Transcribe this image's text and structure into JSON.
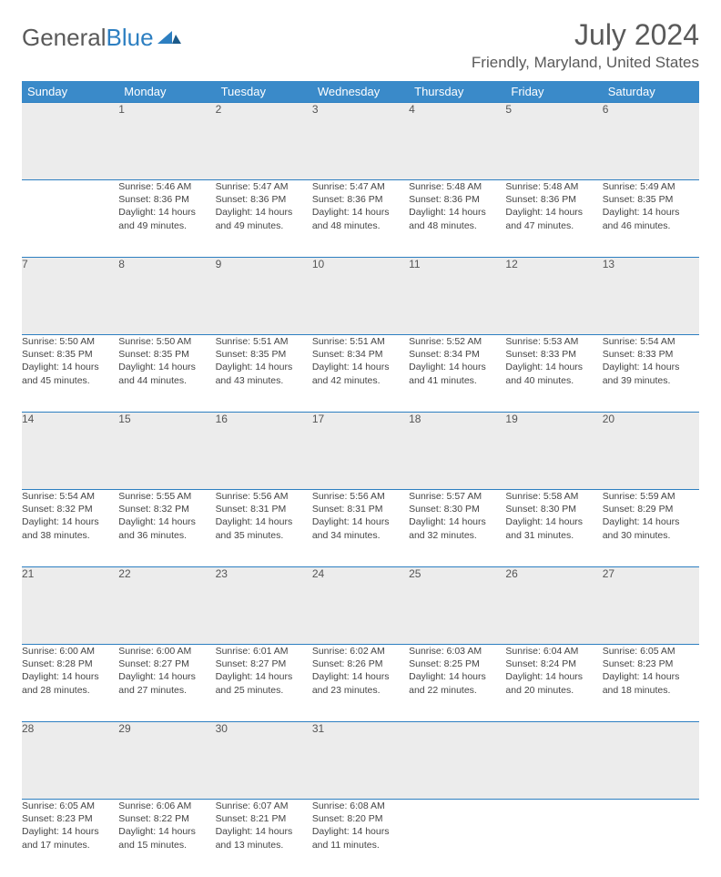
{
  "logo": {
    "text1": "General",
    "text2": "Blue"
  },
  "title": "July 2024",
  "location": "Friendly, Maryland, United States",
  "colors": {
    "header_bg": "#3a8ac9",
    "header_text": "#ffffff",
    "daynum_bg": "#ececec",
    "border": "#2d7fc1",
    "body_text": "#444444",
    "title_text": "#5a5a5a"
  },
  "weekdays": [
    "Sunday",
    "Monday",
    "Tuesday",
    "Wednesday",
    "Thursday",
    "Friday",
    "Saturday"
  ],
  "weeks": [
    [
      {
        "n": "",
        "lines": [
          "",
          "",
          "",
          ""
        ]
      },
      {
        "n": "1",
        "lines": [
          "Sunrise: 5:46 AM",
          "Sunset: 8:36 PM",
          "Daylight: 14 hours",
          "and 49 minutes."
        ]
      },
      {
        "n": "2",
        "lines": [
          "Sunrise: 5:47 AM",
          "Sunset: 8:36 PM",
          "Daylight: 14 hours",
          "and 49 minutes."
        ]
      },
      {
        "n": "3",
        "lines": [
          "Sunrise: 5:47 AM",
          "Sunset: 8:36 PM",
          "Daylight: 14 hours",
          "and 48 minutes."
        ]
      },
      {
        "n": "4",
        "lines": [
          "Sunrise: 5:48 AM",
          "Sunset: 8:36 PM",
          "Daylight: 14 hours",
          "and 48 minutes."
        ]
      },
      {
        "n": "5",
        "lines": [
          "Sunrise: 5:48 AM",
          "Sunset: 8:36 PM",
          "Daylight: 14 hours",
          "and 47 minutes."
        ]
      },
      {
        "n": "6",
        "lines": [
          "Sunrise: 5:49 AM",
          "Sunset: 8:35 PM",
          "Daylight: 14 hours",
          "and 46 minutes."
        ]
      }
    ],
    [
      {
        "n": "7",
        "lines": [
          "Sunrise: 5:50 AM",
          "Sunset: 8:35 PM",
          "Daylight: 14 hours",
          "and 45 minutes."
        ]
      },
      {
        "n": "8",
        "lines": [
          "Sunrise: 5:50 AM",
          "Sunset: 8:35 PM",
          "Daylight: 14 hours",
          "and 44 minutes."
        ]
      },
      {
        "n": "9",
        "lines": [
          "Sunrise: 5:51 AM",
          "Sunset: 8:35 PM",
          "Daylight: 14 hours",
          "and 43 minutes."
        ]
      },
      {
        "n": "10",
        "lines": [
          "Sunrise: 5:51 AM",
          "Sunset: 8:34 PM",
          "Daylight: 14 hours",
          "and 42 minutes."
        ]
      },
      {
        "n": "11",
        "lines": [
          "Sunrise: 5:52 AM",
          "Sunset: 8:34 PM",
          "Daylight: 14 hours",
          "and 41 minutes."
        ]
      },
      {
        "n": "12",
        "lines": [
          "Sunrise: 5:53 AM",
          "Sunset: 8:33 PM",
          "Daylight: 14 hours",
          "and 40 minutes."
        ]
      },
      {
        "n": "13",
        "lines": [
          "Sunrise: 5:54 AM",
          "Sunset: 8:33 PM",
          "Daylight: 14 hours",
          "and 39 minutes."
        ]
      }
    ],
    [
      {
        "n": "14",
        "lines": [
          "Sunrise: 5:54 AM",
          "Sunset: 8:32 PM",
          "Daylight: 14 hours",
          "and 38 minutes."
        ]
      },
      {
        "n": "15",
        "lines": [
          "Sunrise: 5:55 AM",
          "Sunset: 8:32 PM",
          "Daylight: 14 hours",
          "and 36 minutes."
        ]
      },
      {
        "n": "16",
        "lines": [
          "Sunrise: 5:56 AM",
          "Sunset: 8:31 PM",
          "Daylight: 14 hours",
          "and 35 minutes."
        ]
      },
      {
        "n": "17",
        "lines": [
          "Sunrise: 5:56 AM",
          "Sunset: 8:31 PM",
          "Daylight: 14 hours",
          "and 34 minutes."
        ]
      },
      {
        "n": "18",
        "lines": [
          "Sunrise: 5:57 AM",
          "Sunset: 8:30 PM",
          "Daylight: 14 hours",
          "and 32 minutes."
        ]
      },
      {
        "n": "19",
        "lines": [
          "Sunrise: 5:58 AM",
          "Sunset: 8:30 PM",
          "Daylight: 14 hours",
          "and 31 minutes."
        ]
      },
      {
        "n": "20",
        "lines": [
          "Sunrise: 5:59 AM",
          "Sunset: 8:29 PM",
          "Daylight: 14 hours",
          "and 30 minutes."
        ]
      }
    ],
    [
      {
        "n": "21",
        "lines": [
          "Sunrise: 6:00 AM",
          "Sunset: 8:28 PM",
          "Daylight: 14 hours",
          "and 28 minutes."
        ]
      },
      {
        "n": "22",
        "lines": [
          "Sunrise: 6:00 AM",
          "Sunset: 8:27 PM",
          "Daylight: 14 hours",
          "and 27 minutes."
        ]
      },
      {
        "n": "23",
        "lines": [
          "Sunrise: 6:01 AM",
          "Sunset: 8:27 PM",
          "Daylight: 14 hours",
          "and 25 minutes."
        ]
      },
      {
        "n": "24",
        "lines": [
          "Sunrise: 6:02 AM",
          "Sunset: 8:26 PM",
          "Daylight: 14 hours",
          "and 23 minutes."
        ]
      },
      {
        "n": "25",
        "lines": [
          "Sunrise: 6:03 AM",
          "Sunset: 8:25 PM",
          "Daylight: 14 hours",
          "and 22 minutes."
        ]
      },
      {
        "n": "26",
        "lines": [
          "Sunrise: 6:04 AM",
          "Sunset: 8:24 PM",
          "Daylight: 14 hours",
          "and 20 minutes."
        ]
      },
      {
        "n": "27",
        "lines": [
          "Sunrise: 6:05 AM",
          "Sunset: 8:23 PM",
          "Daylight: 14 hours",
          "and 18 minutes."
        ]
      }
    ],
    [
      {
        "n": "28",
        "lines": [
          "Sunrise: 6:05 AM",
          "Sunset: 8:23 PM",
          "Daylight: 14 hours",
          "and 17 minutes."
        ]
      },
      {
        "n": "29",
        "lines": [
          "Sunrise: 6:06 AM",
          "Sunset: 8:22 PM",
          "Daylight: 14 hours",
          "and 15 minutes."
        ]
      },
      {
        "n": "30",
        "lines": [
          "Sunrise: 6:07 AM",
          "Sunset: 8:21 PM",
          "Daylight: 14 hours",
          "and 13 minutes."
        ]
      },
      {
        "n": "31",
        "lines": [
          "Sunrise: 6:08 AM",
          "Sunset: 8:20 PM",
          "Daylight: 14 hours",
          "and 11 minutes."
        ]
      },
      {
        "n": "",
        "lines": [
          "",
          "",
          "",
          ""
        ]
      },
      {
        "n": "",
        "lines": [
          "",
          "",
          "",
          ""
        ]
      },
      {
        "n": "",
        "lines": [
          "",
          "",
          "",
          ""
        ]
      }
    ]
  ]
}
